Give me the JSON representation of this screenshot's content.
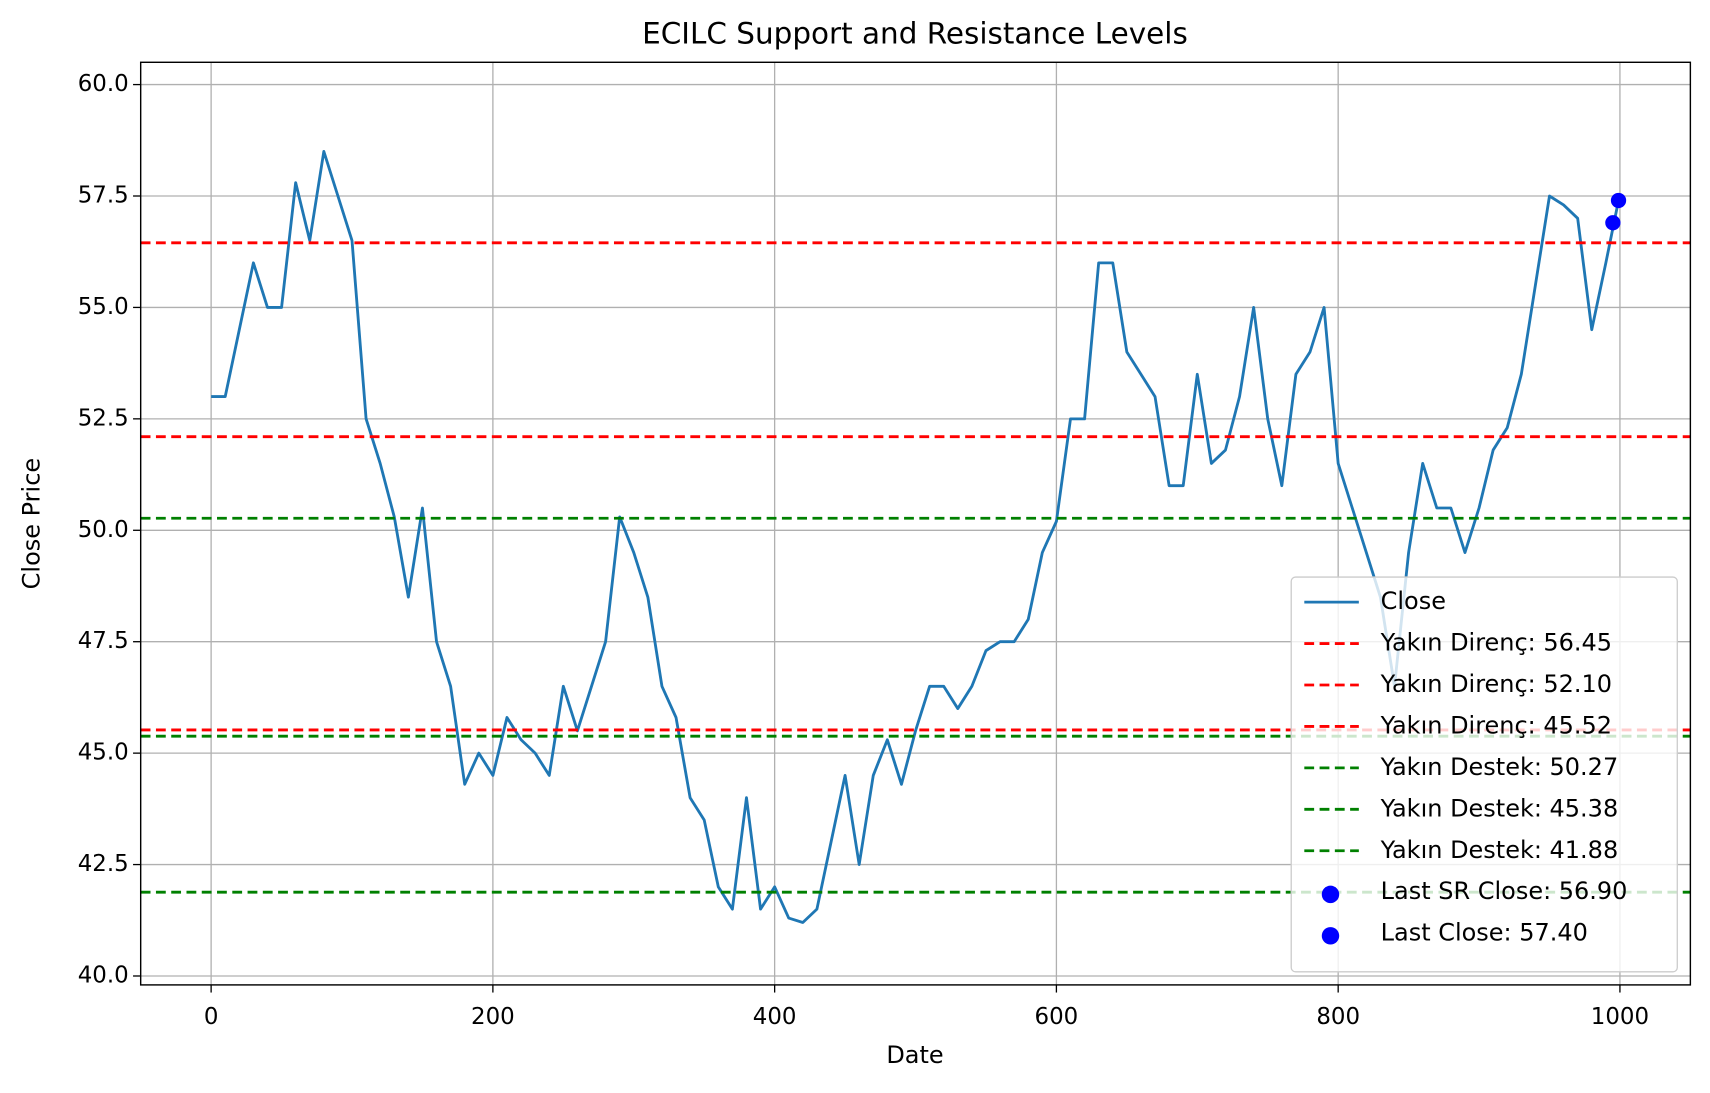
{
  "chart_data": {
    "type": "line",
    "title": "ECILC Support and Resistance Levels",
    "x_label": "Date",
    "y_label": "Close Price",
    "x": [
      0,
      10,
      20,
      30,
      40,
      50,
      60,
      70,
      80,
      90,
      100,
      110,
      120,
      130,
      140,
      150,
      160,
      170,
      180,
      190,
      200,
      210,
      220,
      230,
      240,
      250,
      260,
      270,
      280,
      290,
      300,
      310,
      320,
      330,
      340,
      350,
      360,
      370,
      380,
      390,
      400,
      410,
      420,
      430,
      440,
      450,
      460,
      470,
      480,
      490,
      500,
      510,
      520,
      530,
      540,
      550,
      560,
      570,
      580,
      590,
      600,
      610,
      620,
      630,
      640,
      650,
      660,
      670,
      680,
      690,
      700,
      710,
      720,
      730,
      740,
      750,
      760,
      770,
      780,
      790,
      800,
      810,
      820,
      830,
      840,
      850,
      860,
      870,
      880,
      890,
      900,
      910,
      920,
      930,
      940,
      950,
      960,
      970,
      980,
      990,
      999
    ],
    "series": [
      {
        "name": "Close",
        "color": "#1f77b4",
        "values": [
          53.0,
          53.0,
          54.5,
          56.0,
          55.0,
          55.0,
          57.8,
          56.5,
          58.5,
          57.5,
          56.5,
          52.5,
          51.5,
          50.3,
          48.5,
          50.5,
          47.5,
          46.5,
          44.3,
          45.0,
          44.5,
          45.8,
          45.3,
          45.0,
          44.5,
          46.5,
          45.5,
          46.5,
          47.5,
          50.3,
          49.5,
          48.5,
          46.5,
          45.8,
          44.0,
          43.5,
          42.0,
          41.5,
          44.0,
          41.5,
          42.0,
          41.3,
          41.2,
          41.5,
          43.0,
          44.5,
          42.5,
          44.5,
          45.3,
          44.3,
          45.5,
          46.5,
          46.5,
          46.0,
          46.5,
          47.3,
          47.5,
          47.5,
          48.0,
          49.5,
          50.2,
          52.5,
          52.5,
          56.0,
          56.0,
          54.0,
          53.5,
          53.0,
          51.0,
          51.0,
          53.5,
          51.5,
          51.8,
          53.0,
          55.0,
          52.5,
          51.0,
          53.5,
          54.0,
          55.0,
          51.5,
          50.5,
          49.5,
          48.5,
          46.5,
          49.5,
          51.5,
          50.5,
          50.5,
          49.5,
          50.5,
          51.8,
          52.3,
          53.5,
          55.5,
          57.5,
          57.3,
          57.0,
          54.5,
          56.0,
          57.4
        ]
      }
    ],
    "hlines": [
      {
        "name": "Yakın Direnç: 56.45",
        "value": 56.45,
        "color": "#ff0000"
      },
      {
        "name": "Yakın Direnç: 52.10",
        "value": 52.1,
        "color": "#ff0000"
      },
      {
        "name": "Yakın Direnç: 45.52",
        "value": 45.52,
        "color": "#ff0000"
      },
      {
        "name": "Yakın Destek: 50.27",
        "value": 50.27,
        "color": "#008000"
      },
      {
        "name": "Yakın Destek: 45.38",
        "value": 45.38,
        "color": "#008000"
      },
      {
        "name": "Yakın Destek: 41.88",
        "value": 41.88,
        "color": "#008000"
      }
    ],
    "points": [
      {
        "name": "Last SR Close: 56.90",
        "x": 995,
        "y": 56.9,
        "color": "#0000ff"
      },
      {
        "name": "Last Close: 57.40",
        "x": 999,
        "y": 57.4,
        "color": "#0000ff"
      }
    ],
    "xlim": [
      -50,
      1050
    ],
    "ylim": [
      39.8,
      60.5
    ],
    "xticks": [
      0,
      200,
      400,
      600,
      800,
      1000
    ],
    "yticks": [
      {
        "value": 40,
        "label": "40.0"
      },
      42.5,
      {
        "value": 45,
        "label": "45.0"
      },
      47.5,
      {
        "value": 50,
        "label": "50.0"
      },
      52.5,
      {
        "value": 55,
        "label": "55.0"
      },
      57.5,
      {
        "value": 60,
        "label": "60.0"
      }
    ],
    "grid": true,
    "legend": "lower right"
  }
}
